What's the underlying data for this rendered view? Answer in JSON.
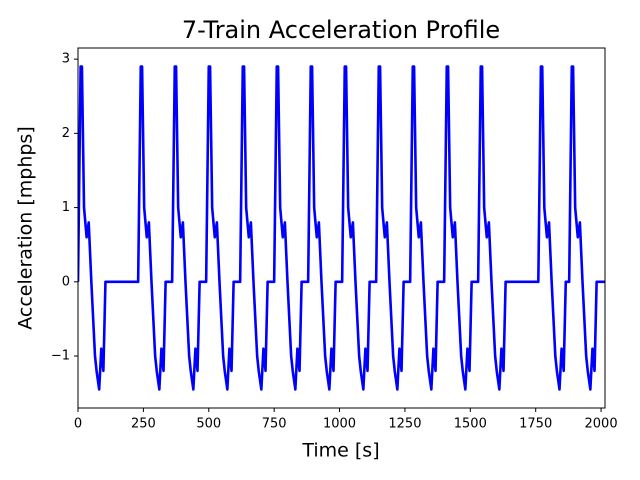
{
  "chart_data": {
    "type": "line",
    "title": "7-Train Acceleration Profile",
    "x_label": "Time [s]",
    "y_label": "Acceleration [mphps]",
    "x": [
      0,
      10,
      15,
      23,
      33,
      41,
      51,
      65,
      71,
      81,
      89,
      97,
      105,
      230,
      240,
      245,
      253,
      263,
      271,
      281,
      295,
      301,
      311,
      319,
      327,
      335,
      360,
      370,
      375,
      383,
      393,
      401,
      411,
      425,
      431,
      441,
      449,
      457,
      465,
      490,
      500,
      505,
      513,
      523,
      531,
      541,
      555,
      561,
      571,
      579,
      587,
      595,
      620,
      630,
      635,
      643,
      653,
      661,
      671,
      685,
      691,
      701,
      709,
      717,
      725,
      750,
      760,
      765,
      773,
      783,
      791,
      801,
      815,
      821,
      831,
      839,
      847,
      855,
      880,
      890,
      895,
      903,
      913,
      921,
      931,
      945,
      951,
      961,
      969,
      977,
      985,
      1010,
      1020,
      1025,
      1033,
      1043,
      1051,
      1061,
      1075,
      1081,
      1091,
      1099,
      1107,
      1115,
      1140,
      1150,
      1155,
      1163,
      1173,
      1181,
      1191,
      1205,
      1211,
      1221,
      1229,
      1237,
      1245,
      1270,
      1280,
      1285,
      1293,
      1303,
      1311,
      1321,
      1335,
      1341,
      1351,
      1359,
      1367,
      1375,
      1400,
      1410,
      1415,
      1423,
      1433,
      1441,
      1451,
      1465,
      1471,
      1481,
      1489,
      1497,
      1505,
      1530,
      1540,
      1545,
      1553,
      1563,
      1571,
      1581,
      1595,
      1601,
      1611,
      1619,
      1627,
      1635,
      1760,
      1770,
      1775,
      1783,
      1793,
      1801,
      1811,
      1825,
      1831,
      1841,
      1849,
      1857,
      1865,
      1878,
      1888,
      1893,
      1901,
      1911,
      1919,
      1929,
      1943,
      1949,
      1959,
      1967,
      1975,
      1983,
      2015
    ],
    "series": [
      {
        "color": "#0000ff",
        "values": [
          0,
          2.9,
          2.9,
          1.0,
          0.6,
          0.8,
          0,
          -1.0,
          -1.2,
          -1.45,
          -0.9,
          -1.2,
          0,
          0,
          2.9,
          2.9,
          1.0,
          0.6,
          0.8,
          0,
          -1.0,
          -1.2,
          -1.45,
          -0.9,
          -1.2,
          0,
          0,
          2.9,
          2.9,
          1.0,
          0.6,
          0.8,
          0,
          -1.0,
          -1.2,
          -1.45,
          -0.9,
          -1.2,
          0,
          0,
          2.9,
          2.9,
          1.0,
          0.6,
          0.8,
          0,
          -1.0,
          -1.2,
          -1.45,
          -0.9,
          -1.2,
          0,
          0,
          2.9,
          2.9,
          1.0,
          0.6,
          0.8,
          0,
          -1.0,
          -1.2,
          -1.45,
          -0.9,
          -1.2,
          0,
          0,
          2.9,
          2.9,
          1.0,
          0.6,
          0.8,
          0,
          -1.0,
          -1.2,
          -1.45,
          -0.9,
          -1.2,
          0,
          0,
          2.9,
          2.9,
          1.0,
          0.6,
          0.8,
          0,
          -1.0,
          -1.2,
          -1.45,
          -0.9,
          -1.2,
          0,
          0,
          2.9,
          2.9,
          1.0,
          0.6,
          0.8,
          0,
          -1.0,
          -1.2,
          -1.45,
          -0.9,
          -1.2,
          0,
          0,
          2.9,
          2.9,
          1.0,
          0.6,
          0.8,
          0,
          -1.0,
          -1.2,
          -1.45,
          -0.9,
          -1.2,
          0,
          0,
          2.9,
          2.9,
          1.0,
          0.6,
          0.8,
          0,
          -1.0,
          -1.2,
          -1.45,
          -0.9,
          -1.2,
          0,
          0,
          2.9,
          2.9,
          1.0,
          0.6,
          0.8,
          0,
          -1.0,
          -1.2,
          -1.45,
          -0.9,
          -1.2,
          0,
          0,
          2.9,
          2.9,
          1.0,
          0.6,
          0.8,
          0,
          -1.0,
          -1.2,
          -1.45,
          -0.9,
          -1.2,
          0,
          0,
          2.9,
          2.9,
          1.0,
          0.6,
          0.8,
          0,
          -1.0,
          -1.2,
          -1.45,
          -0.9,
          -1.2,
          0,
          0,
          2.9,
          2.9,
          1.0,
          0.6,
          0.8,
          0,
          -1.0,
          -1.2,
          -1.45,
          -0.9,
          -1.2,
          0,
          0
        ]
      }
    ],
    "xlim": [
      0,
      2015
    ],
    "ylim": [
      -1.7,
      3.15
    ],
    "xticks": [
      0,
      250,
      500,
      750,
      1000,
      1250,
      1500,
      1750,
      2000
    ],
    "yticks": [
      {
        "value": -1,
        "label": "−1"
      },
      0,
      1,
      2,
      3
    ],
    "grid": false
  }
}
